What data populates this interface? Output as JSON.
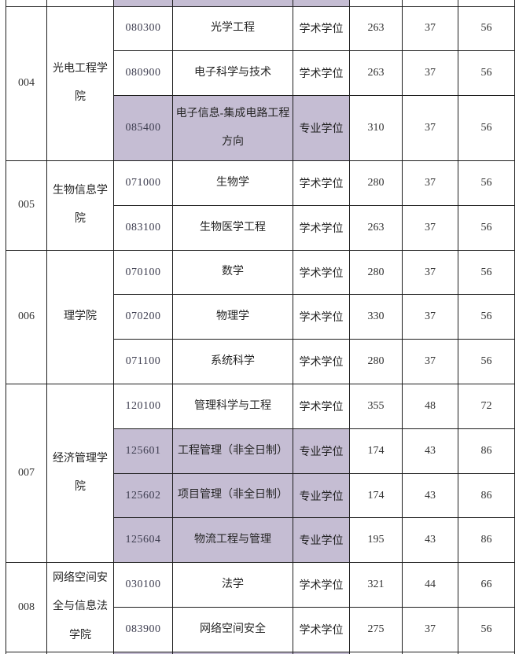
{
  "table": {
    "highlight_color": "#c5bdd3",
    "border_color": "#1e1e1e",
    "column_count": 8,
    "partial_row_top": {
      "highlighted_column_indexes": [
        2,
        3,
        4
      ]
    },
    "partial_row_bottom": {
      "highlighted_column_indexes": [
        2,
        3,
        4
      ]
    },
    "groups": [
      {
        "dept_no": "004",
        "college": "光电工程学院",
        "college_display": "光电工程学\n院",
        "rows": [
          {
            "code": "080300",
            "major": "光学工程",
            "degree": "学术学位",
            "total_score": "263",
            "single_subject": "37",
            "double_subject": "56",
            "highlighted": false
          },
          {
            "code": "080900",
            "major": "电子科学与技术",
            "degree": "学术学位",
            "total_score": "263",
            "single_subject": "37",
            "double_subject": "56",
            "highlighted": false
          },
          {
            "code": "085400",
            "major": "电子信息-集成电路工程方向",
            "major_display": "电子信息-集成电路工程\n方向",
            "degree": "专业学位",
            "total_score": "310",
            "single_subject": "37",
            "double_subject": "56",
            "highlighted": true,
            "tall": true
          }
        ]
      },
      {
        "dept_no": "005",
        "college": "生物信息学院",
        "college_display": "生物信息学\n院",
        "rows": [
          {
            "code": "071000",
            "major": "生物学",
            "degree": "学术学位",
            "total_score": "280",
            "single_subject": "37",
            "double_subject": "56",
            "highlighted": false
          },
          {
            "code": "083100",
            "major": "生物医学工程",
            "degree": "学术学位",
            "total_score": "263",
            "single_subject": "37",
            "double_subject": "56",
            "highlighted": false
          }
        ]
      },
      {
        "dept_no": "006",
        "college": "理学院",
        "college_display": "理学院",
        "rows": [
          {
            "code": "070100",
            "major": "数学",
            "degree": "学术学位",
            "total_score": "280",
            "single_subject": "37",
            "double_subject": "56",
            "highlighted": false
          },
          {
            "code": "070200",
            "major": "物理学",
            "degree": "学术学位",
            "total_score": "330",
            "single_subject": "37",
            "double_subject": "56",
            "highlighted": false
          },
          {
            "code": "071100",
            "major": "系统科学",
            "degree": "学术学位",
            "total_score": "280",
            "single_subject": "37",
            "double_subject": "56",
            "highlighted": false
          }
        ]
      },
      {
        "dept_no": "007",
        "college": "经济管理学院",
        "college_display": "经济管理学\n院",
        "rows": [
          {
            "code": "120100",
            "major": "管理科学与工程",
            "degree": "学术学位",
            "total_score": "355",
            "single_subject": "48",
            "double_subject": "72",
            "highlighted": false
          },
          {
            "code": "125601",
            "major": "工程管理（非全日制）",
            "degree": "专业学位",
            "total_score": "174",
            "single_subject": "43",
            "double_subject": "86",
            "highlighted": true
          },
          {
            "code": "125602",
            "major": "项目管理（非全日制）",
            "degree": "专业学位",
            "total_score": "174",
            "single_subject": "43",
            "double_subject": "86",
            "highlighted": true
          },
          {
            "code": "125604",
            "major": "物流工程与管理",
            "degree": "专业学位",
            "total_score": "195",
            "single_subject": "43",
            "double_subject": "86",
            "highlighted": true
          }
        ]
      },
      {
        "dept_no": "008",
        "college": "网络空间安全与信息法学院",
        "college_display": "网络空间安\n全与信息法\n学院",
        "rows": [
          {
            "code": "030100",
            "major": "法学",
            "degree": "学术学位",
            "total_score": "321",
            "single_subject": "44",
            "double_subject": "66",
            "highlighted": false
          },
          {
            "code": "083900",
            "major": "网络空间安全",
            "degree": "学术学位",
            "total_score": "275",
            "single_subject": "37",
            "double_subject": "56",
            "highlighted": false
          }
        ]
      }
    ]
  }
}
